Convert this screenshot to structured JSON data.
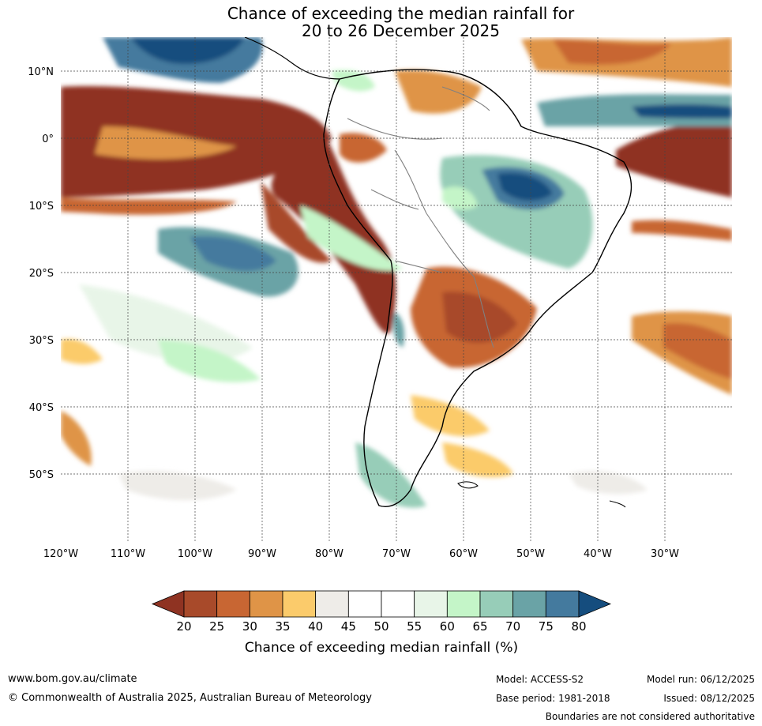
{
  "title": {
    "line1": "Chance of exceeding the median rainfall for",
    "line2": "20 to 26 December 2025"
  },
  "axes": {
    "lat_labels": [
      "10°N",
      "0°",
      "10°S",
      "20°S",
      "30°S",
      "40°S",
      "50°S"
    ],
    "lon_labels": [
      "120°W",
      "110°W",
      "100°W",
      "90°W",
      "80°W",
      "70°W",
      "60°W",
      "50°W",
      "40°W",
      "30°W"
    ]
  },
  "colorbar": {
    "title": "Chance of exceeding median rainfall (%)",
    "ticks": [
      "20",
      "25",
      "30",
      "35",
      "40",
      "45",
      "50",
      "55",
      "60",
      "65",
      "70",
      "75",
      "80"
    ],
    "colors": [
      "#8f3322",
      "#a84a2a",
      "#c86633",
      "#df9447",
      "#fbcb6b",
      "#eeece8",
      "#ffffff",
      "#ffffff",
      "#e8f5e8",
      "#c4f5c8",
      "#97cdb8",
      "#6aa3a6",
      "#447a9e",
      "#154d7e"
    ]
  },
  "footer": {
    "website": "www.bom.gov.au/climate",
    "copyright": "© Commonwealth of Australia 2025, Australian Bureau of Meteorology",
    "model": "Model: ACCESS-S2",
    "base_period": "Base period: 1981-2018",
    "model_run": "Model run: 06/12/2025",
    "issued": "Issued: 08/12/2025",
    "disclaimer": "Boundaries are not considered authoritative"
  }
}
